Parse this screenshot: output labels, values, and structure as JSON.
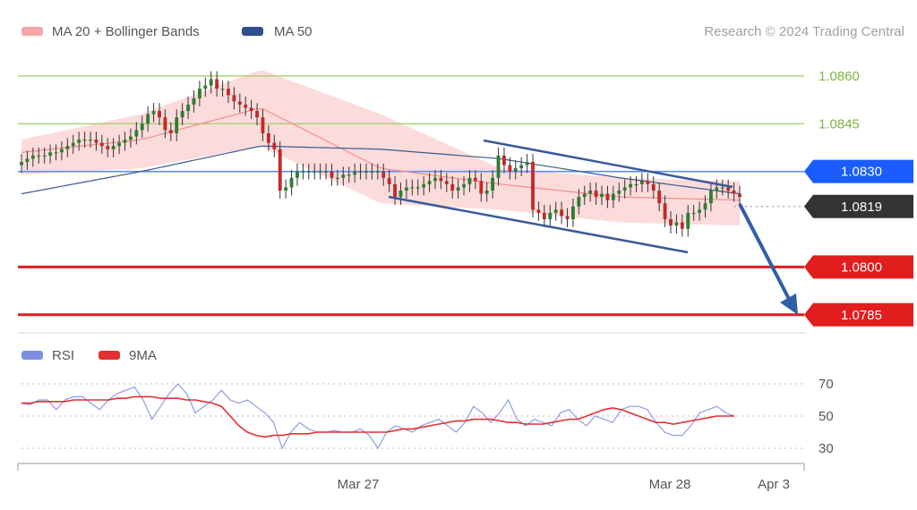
{
  "legend": {
    "ma20_label": "MA 20 + Bollinger Bands",
    "ma50_label": "MA 50",
    "rsi_label": "RSI",
    "rsi_ma_label": "9MA",
    "ma20_color": "#f4a6a6",
    "ma50_color": "#2f4f8f",
    "rsi_color": "#7f8fe0",
    "rsi_ma_color": "#e23030"
  },
  "copyright": "Research © 2024 Trading Central",
  "chart_data": [
    {
      "type": "candlestick",
      "title": "",
      "y_ticks_shown": [
        "1.0860",
        "1.0845",
        "1.0830",
        "1.0819",
        "1.0800",
        "1.0785"
      ],
      "ylim": [
        1.0781,
        1.0867
      ],
      "levels": [
        {
          "label": "1.0860",
          "value": 1.086,
          "color": "#8bc34a",
          "kind": "resistance"
        },
        {
          "label": "1.0845",
          "value": 1.0845,
          "color": "#8bc34a",
          "kind": "resistance"
        },
        {
          "label": "1.0830",
          "value": 1.083,
          "color": "#1a5cff",
          "kind": "pivot"
        },
        {
          "label": "1.0819",
          "value": 1.0819,
          "color": "#333333",
          "kind": "last-price"
        },
        {
          "label": "1.0800",
          "value": 1.08,
          "color": "#e11d1d",
          "kind": "support"
        },
        {
          "label": "1.0785",
          "value": 1.0785,
          "color": "#e11d1d",
          "kind": "support"
        }
      ],
      "x_tick_labels": [
        "Mar 27",
        "Mar 28",
        "Apr 3"
      ],
      "candles_close": [
        1.0833,
        1.0834,
        1.0835,
        1.0835,
        1.0835,
        1.0836,
        1.0836,
        1.0837,
        1.0838,
        1.0839,
        1.084,
        1.084,
        1.084,
        1.0839,
        1.0838,
        1.0837,
        1.0838,
        1.0839,
        1.084,
        1.0841,
        1.0843,
        1.0845,
        1.0848,
        1.0849,
        1.0847,
        1.0843,
        1.0842,
        1.0847,
        1.0849,
        1.0851,
        1.0853,
        1.0856,
        1.0857,
        1.0859,
        1.0856,
        1.0856,
        1.0854,
        1.0852,
        1.0851,
        1.085,
        1.0849,
        1.0847,
        1.0842,
        1.0839,
        1.0837,
        1.0824,
        1.0825,
        1.0828,
        1.083,
        1.083,
        1.083,
        1.083,
        1.083,
        1.083,
        1.0828,
        1.0828,
        1.0829,
        1.0829,
        1.083,
        1.083,
        1.083,
        1.083,
        1.083,
        1.0828,
        1.0826,
        1.0822,
        1.0824,
        1.0825,
        1.0825,
        1.0825,
        1.0826,
        1.0827,
        1.0828,
        1.0827,
        1.0826,
        1.0824,
        1.0825,
        1.0826,
        1.0828,
        1.0827,
        1.0823,
        1.0824,
        1.0828,
        1.0835,
        1.0832,
        1.083,
        1.0831,
        1.0832,
        1.0833,
        1.0818,
        1.0817,
        1.0815,
        1.0817,
        1.0818,
        1.0816,
        1.0815,
        1.0819,
        1.0822,
        1.0823,
        1.0824,
        1.0822,
        1.0823,
        1.0821,
        1.0823,
        1.0824,
        1.0825,
        1.0826,
        1.0826,
        1.0827,
        1.0826,
        1.0824,
        1.082,
        1.0815,
        1.0813,
        1.0814,
        1.0812,
        1.0817,
        1.0817,
        1.0818,
        1.082,
        1.0824,
        1.0825,
        1.0825,
        1.0824,
        1.0823,
        1.0822
      ],
      "ma20": {
        "x": [
          0,
          20,
          40,
          60,
          80,
          100,
          120
        ],
        "values": [
          1.0836,
          1.084,
          1.085,
          1.0831,
          1.0826,
          1.0822,
          1.0821
        ]
      },
      "ma50": {
        "x": [
          0,
          20,
          40,
          60,
          80,
          100,
          120
        ],
        "values": [
          1.0823,
          1.083,
          1.0838,
          1.0837,
          1.0834,
          1.0828,
          1.0823
        ]
      },
      "bb_upper": {
        "x": [
          0,
          20,
          40,
          60,
          80,
          100,
          120
        ],
        "values": [
          1.084,
          1.0848,
          1.0862,
          1.0848,
          1.0831,
          1.0828,
          1.0827
        ]
      },
      "bb_lower": {
        "x": [
          0,
          20,
          40,
          60,
          80,
          100,
          120
        ],
        "values": [
          1.0829,
          1.0831,
          1.0838,
          1.082,
          1.0818,
          1.0814,
          1.0813
        ]
      }
    },
    {
      "type": "line",
      "title": "",
      "ylim": [
        25,
        75
      ],
      "y_ticks": [
        70,
        50,
        30
      ],
      "series": [
        {
          "name": "RSI",
          "values": [
            58,
            57,
            60,
            60,
            54,
            60,
            62,
            62,
            58,
            54,
            60,
            64,
            66,
            68,
            60,
            48,
            56,
            64,
            70,
            64,
            52,
            56,
            60,
            66,
            60,
            58,
            60,
            56,
            52,
            46,
            30,
            40,
            46,
            42,
            40,
            40,
            41,
            40,
            40,
            42,
            38,
            30,
            40,
            44,
            42,
            40,
            44,
            46,
            48,
            44,
            40,
            46,
            56,
            52,
            46,
            52,
            60,
            48,
            44,
            48,
            46,
            44,
            52,
            54,
            48,
            44,
            50,
            48,
            46,
            54,
            56,
            56,
            54,
            46,
            40,
            38,
            38,
            44,
            52,
            54,
            56,
            52,
            50
          ]
        },
        {
          "name": "9MA",
          "values": [
            58,
            58,
            59,
            59,
            59,
            59,
            60,
            60,
            60,
            60,
            60,
            61,
            61,
            62,
            62,
            62,
            61,
            61,
            61,
            60,
            60,
            59,
            58,
            56,
            50,
            44,
            40,
            38,
            37,
            38,
            38,
            39,
            39,
            39,
            40,
            40,
            40,
            40,
            40,
            40,
            40,
            40,
            40,
            41,
            42,
            42,
            43,
            44,
            45,
            46,
            47,
            47,
            48,
            48,
            48,
            47,
            46,
            46,
            45,
            45,
            45,
            46,
            47,
            48,
            48,
            50,
            52,
            54,
            55,
            54,
            52,
            50,
            48,
            46,
            46,
            45,
            46,
            47,
            48,
            49,
            50,
            50,
            50
          ]
        }
      ]
    }
  ]
}
